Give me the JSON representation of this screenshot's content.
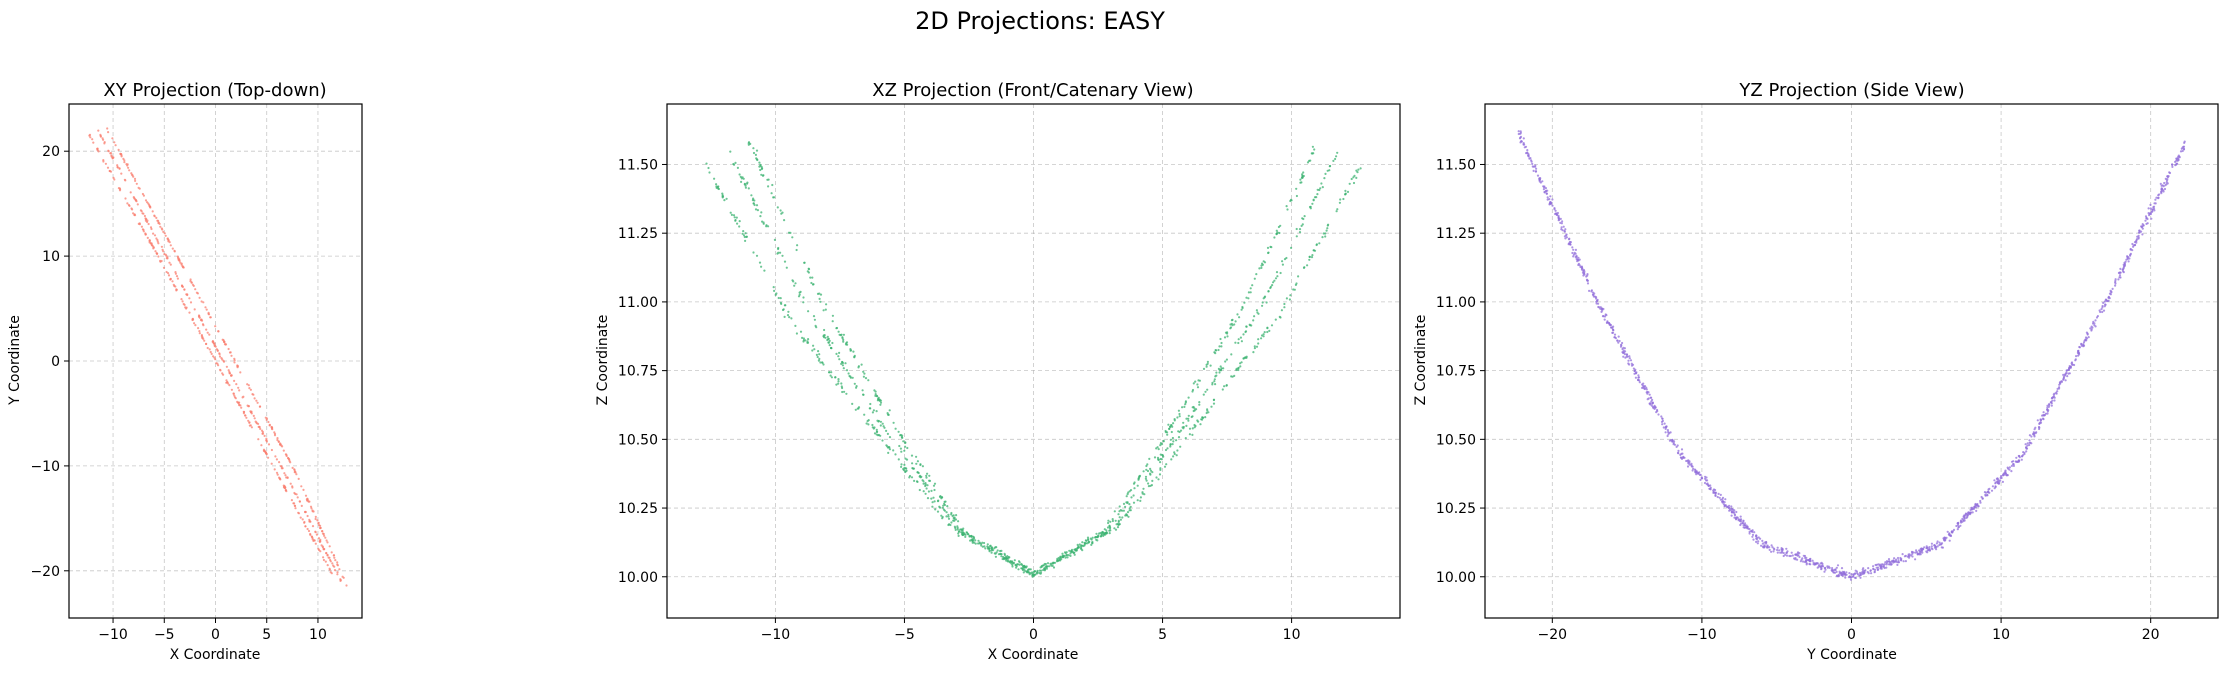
{
  "figure_title": "2D Projections: EASY",
  "chart_data": [
    {
      "type": "scatter",
      "title": "XY Projection (Top-down)",
      "xlabel": "X Coordinate",
      "ylabel": "Y Coordinate",
      "xlim": [
        -14.3,
        14.3
      ],
      "ylim": [
        -24.5,
        24.5
      ],
      "xticks": [
        -10,
        -5,
        0,
        5,
        10
      ],
      "yticks": [
        -20,
        -10,
        0,
        10,
        20
      ],
      "grid": true,
      "color": "#fa8072",
      "series": [
        {
          "x": [
            -12.3,
            -6,
            0,
            6,
            11.5
          ],
          "y": [
            21.5,
            10.7,
            0,
            -10.7,
            -20.5
          ]
        },
        {
          "x": [
            -11.5,
            -5.5,
            0.6,
            6.7,
            12.3
          ],
          "y": [
            22,
            11.2,
            0.3,
            -10.6,
            -21
          ]
        },
        {
          "x": [
            -10.7,
            -4.7,
            1.3,
            7.3,
            12.9
          ],
          "y": [
            22.3,
            11.7,
            1,
            -9.6,
            -21.5
          ]
        }
      ]
    },
    {
      "type": "scatter",
      "title": "XZ Projection (Front/Catenary View)",
      "xlabel": "X Coordinate",
      "ylabel": "Z Coordinate",
      "xlim": [
        -14.2,
        14.2
      ],
      "ylim": [
        9.85,
        11.72
      ],
      "xticks": [
        -10,
        -5,
        0,
        5,
        10
      ],
      "yticks": [
        10.0,
        10.25,
        10.5,
        10.75,
        11.0,
        11.25,
        11.5
      ],
      "grid": true,
      "color": "#3cb371",
      "series": [
        {
          "x": [
            -12.7,
            -9.5,
            -6.3,
            -3.2,
            0,
            3.2,
            6.3,
            9.5,
            12.7
          ],
          "y": [
            11.5,
            10.95,
            10.55,
            10.18,
            10.01,
            10.18,
            10.55,
            10.95,
            11.5
          ]
        },
        {
          "x": [
            -11.8,
            -8.8,
            -5.9,
            -2.9,
            0,
            2.9,
            5.9,
            8.8,
            11.8
          ],
          "y": [
            11.55,
            10.98,
            10.56,
            10.17,
            10.01,
            10.17,
            10.56,
            10.98,
            11.55
          ]
        },
        {
          "x": [
            -11,
            -8.2,
            -5.5,
            -2.7,
            0,
            2.7,
            5.5,
            8.2,
            11
          ],
          "y": [
            11.58,
            11.0,
            10.57,
            10.16,
            10.01,
            10.16,
            10.57,
            11.0,
            11.58
          ]
        }
      ]
    },
    {
      "type": "scatter",
      "title": "YZ Projection (Side View)",
      "xlabel": "Y Coordinate",
      "ylabel": "Z Coordinate",
      "xlim": [
        -24.5,
        24.5
      ],
      "ylim": [
        9.85,
        11.72
      ],
      "xticks": [
        -20,
        -10,
        0,
        10,
        20
      ],
      "yticks": [
        10.0,
        10.25,
        10.5,
        10.75,
        11.0,
        11.25,
        11.5
      ],
      "grid": true,
      "color": "#9370db",
      "series": [
        {
          "x": [
            -22.3,
            -17,
            -11.5,
            -6,
            0,
            6,
            11.5,
            17,
            22.3
          ],
          "y": [
            11.62,
            11.0,
            10.45,
            10.12,
            10.0,
            10.12,
            10.45,
            11.0,
            11.58
          ]
        }
      ]
    }
  ]
}
